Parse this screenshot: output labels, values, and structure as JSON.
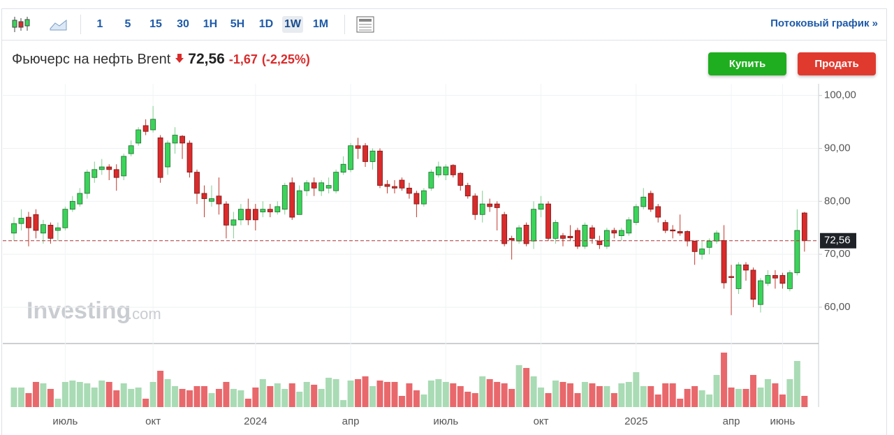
{
  "toolbar": {
    "intervals": [
      "1",
      "5",
      "15",
      "30",
      "1H",
      "5H",
      "1D",
      "1W",
      "1M"
    ],
    "active": "1W",
    "link": "Потоковый график »"
  },
  "header": {
    "title": "Фьючерс на нефть Brent",
    "price": "72,56",
    "change": "-1,67",
    "change_pct": "(-2,25%)"
  },
  "buttons": {
    "buy": "Купить",
    "sell": "Продать"
  },
  "watermark": {
    "brand": "Investing",
    "suffix": ".com"
  },
  "chart_data": {
    "type": "candlestick",
    "categories": [
      null,
      null,
      null,
      null,
      null,
      null,
      null,
      "июль",
      null,
      null,
      null,
      null,
      null,
      null,
      null,
      null,
      null,
      null,
      null,
      "окт",
      null,
      null,
      null,
      null,
      null,
      null,
      null,
      null,
      null,
      null,
      null,
      null,
      null,
      "2024",
      null,
      null,
      null,
      null,
      null,
      null,
      null,
      null,
      null,
      null,
      null,
      null,
      "апр",
      null,
      null,
      null,
      null,
      null,
      null,
      null,
      null,
      null,
      null,
      null,
      null,
      "июль",
      null,
      null,
      null,
      null,
      null,
      null,
      null,
      null,
      null,
      null,
      null,
      null,
      "окт",
      null,
      null,
      null,
      null,
      null,
      null,
      null,
      null,
      null,
      null,
      null,
      null,
      "2025",
      null,
      null,
      null,
      null,
      null,
      null,
      null,
      null,
      null,
      null,
      null,
      null,
      "апр",
      null,
      null,
      null,
      null,
      null,
      null,
      "июнь",
      null,
      null,
      null
    ],
    "open": [
      74,
      75.8,
      77,
      77.5,
      74,
      75.5,
      74.5,
      75,
      78.5,
      79.5,
      81.5,
      84.5,
      86,
      86.5,
      86,
      84.8,
      89,
      91,
      94.3,
      93.5,
      92,
      86.5,
      91,
      92.3,
      91,
      85.5,
      81.5,
      80,
      81,
      79.5,
      75.5,
      76.5,
      78.5,
      78.5,
      78,
      78.5,
      78,
      78.5,
      83.5,
      77.5,
      82,
      83.5,
      82,
      82.5,
      82,
      85.5,
      86,
      90.5,
      90.5,
      87.5,
      89.5,
      83.2,
      82.8,
      84,
      82.5,
      81.5,
      79.5,
      82.5,
      85,
      85,
      86.8,
      85.3,
      83,
      81,
      77.5,
      79.5,
      79.5,
      77.5,
      73,
      72.5,
      75.5,
      72.5,
      78.5,
      79.5,
      73,
      73.5,
      73.4,
      74.5,
      71.5,
      75,
      72.5,
      71.5,
      74.5,
      73.5,
      74,
      76,
      79,
      81.5,
      79,
      76,
      74.6,
      74.3,
      74.3,
      72.5,
      70,
      71.3,
      72.5,
      72.6,
      65.8,
      63.5,
      68,
      67,
      60.5,
      64.5,
      66,
      66,
      63.5,
      66.5,
      77.8
    ],
    "high": [
      77,
      78.5,
      78,
      78.5,
      76.5,
      76,
      76,
      79,
      81,
      82.5,
      86,
      87.5,
      88,
      87,
      87,
      89,
      91.5,
      94,
      95.5,
      98,
      92.5,
      91.5,
      94,
      92.5,
      91.5,
      86,
      83,
      83,
      84.5,
      80,
      78,
      79.5,
      80.5,
      79.5,
      80,
      79.5,
      80,
      83.5,
      84.5,
      83,
      84,
      84.5,
      84,
      84.5,
      86,
      88.5,
      91,
      92,
      91,
      90,
      90,
      84,
      84,
      84.5,
      83.5,
      82,
      82.5,
      86,
      87.5,
      87,
      87,
      85.5,
      83.5,
      81.5,
      82,
      80.5,
      80,
      78,
      73.5,
      75.5,
      76,
      80,
      81,
      80,
      76.5,
      74,
      75.5,
      75,
      76,
      75.5,
      73.5,
      75,
      75,
      75,
      77,
      79.5,
      82.5,
      82,
      79.5,
      76.5,
      75.5,
      77.5,
      74.5,
      72.5,
      72.5,
      73,
      74.5,
      75.5,
      68,
      68.5,
      68.5,
      67.5,
      65.5,
      67,
      67,
      66.5,
      67,
      78.5,
      78
    ],
    "low": [
      72.5,
      74.5,
      71.5,
      73,
      72,
      72,
      72.5,
      74.5,
      78,
      79,
      80.5,
      83.5,
      85,
      84,
      82,
      84,
      88.5,
      90.5,
      92.5,
      93,
      83.5,
      85,
      89,
      88,
      84.5,
      79.5,
      77,
      79,
      77.5,
      73,
      73,
      75.5,
      75.5,
      74.5,
      77,
      77,
      77.5,
      77.5,
      76.5,
      77.5,
      81,
      81,
      81,
      81.5,
      81.5,
      85,
      85.5,
      88,
      86.5,
      86,
      82.5,
      81.5,
      81.5,
      82,
      80.5,
      77,
      79,
      82,
      84.5,
      84,
      84.5,
      82,
      80.5,
      76.5,
      76,
      78,
      74.5,
      71.5,
      69,
      72,
      71.5,
      71,
      77,
      72.5,
      72,
      71.5,
      72.5,
      71,
      71,
      72,
      71,
      71,
      73,
      72.5,
      73.5,
      75.5,
      78.5,
      78,
      76,
      74,
      73,
      73.5,
      71.5,
      68,
      69,
      70,
      72,
      63.5,
      58.5,
      62.5,
      65,
      60,
      59,
      64,
      63.5,
      63.5,
      63,
      66,
      70.5
    ],
    "close": [
      75.8,
      76.8,
      75,
      74.5,
      75.6,
      73,
      75,
      78.5,
      80,
      81.5,
      85.5,
      86,
      86.5,
      86,
      84.5,
      88.5,
      90.5,
      93.5,
      93.2,
      95.5,
      84.5,
      91,
      92.5,
      91,
      85.5,
      81.5,
      80.5,
      80.5,
      79.5,
      75.5,
      76.5,
      78.5,
      76.5,
      76.5,
      78.5,
      78,
      79,
      83,
      77,
      82,
      83.5,
      82.5,
      83.5,
      83,
      85.5,
      87,
      90.5,
      90,
      87.5,
      89.5,
      83,
      82.8,
      82.5,
      82.5,
      81.5,
      79.5,
      82,
      85.5,
      86.5,
      86.5,
      85,
      83,
      81,
      77.5,
      79.5,
      79,
      78.8,
      72,
      72.7,
      75,
      72,
      78.5,
      79.5,
      73,
      76,
      73,
      73.1,
      71.5,
      75.5,
      73,
      71.8,
      74.5,
      74,
      74.5,
      76.5,
      79,
      80.8,
      78.5,
      77,
      74.5,
      74.4,
      74,
      72.5,
      70.5,
      71,
      72.5,
      74,
      64.6,
      65.6,
      68,
      67,
      61.5,
      65,
      66,
      65.5,
      64.5,
      66.5,
      74.5,
      72.56
    ],
    "volume": [
      28,
      28,
      20,
      36,
      34,
      26,
      12,
      36,
      38,
      36,
      34,
      28,
      38,
      36,
      24,
      34,
      26,
      28,
      12,
      36,
      52,
      40,
      30,
      26,
      24,
      30,
      30,
      20,
      26,
      36,
      26,
      24,
      12,
      28,
      40,
      30,
      34,
      26,
      34,
      22,
      36,
      32,
      26,
      42,
      40,
      10,
      38,
      40,
      44,
      30,
      38,
      36,
      36,
      16,
      34,
      24,
      18,
      38,
      40,
      36,
      34,
      30,
      22,
      20,
      44,
      40,
      36,
      34,
      26,
      60,
      56,
      44,
      28,
      20,
      38,
      36,
      34,
      20,
      36,
      34,
      30,
      30,
      20,
      34,
      36,
      50,
      30,
      30,
      18,
      34,
      34,
      12,
      26,
      30,
      24,
      18,
      46,
      78,
      28,
      26,
      26,
      46,
      28,
      40,
      34,
      18,
      40,
      66,
      16
    ],
    "current": {
      "value": 72.56,
      "label": "72,56"
    },
    "ylim": [
      53.4,
      102.2
    ],
    "yticks": [
      {
        "value": 100,
        "label": "100,00"
      },
      {
        "value": 90,
        "label": "90,00"
      },
      {
        "value": 80,
        "label": "80,00"
      },
      {
        "value": 70,
        "label": "70,00"
      },
      {
        "value": 60,
        "label": "60,00"
      }
    ],
    "up_color": "#3bd45a",
    "down_color": "#d92b2b",
    "volume_up_color": "#a9dbb4",
    "volume_down_color": "#e8686c",
    "grid": true
  }
}
